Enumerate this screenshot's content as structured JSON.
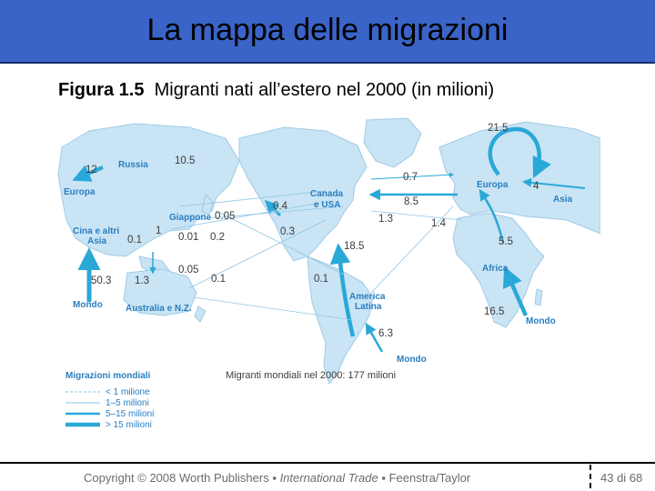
{
  "header": {
    "title": "La mappa delle migrazioni"
  },
  "figure": {
    "label": "Figura 1.5",
    "caption": "Migranti nati all’estero nel 2000 (in milioni)"
  },
  "colors": {
    "title_bg": "#3a64c8",
    "land": "#c9e4f4",
    "flow": "#2aa8d8",
    "region_label": "#2a7ec0"
  },
  "map": {
    "regions": {
      "russia": "Russia",
      "europa_left": "Europa",
      "giappone": "Giappone",
      "cina_line1": "Cina e altri",
      "cina_line2": "Asia",
      "mondo_left": "Mondo",
      "australia": "Australia e N.Z.",
      "canada_line1": "Canada",
      "canada_line2": "e USA",
      "europa_right": "Europa",
      "asia_right": "Asia",
      "africa": "Africa",
      "america_line1": "America",
      "america_line2": "Latina",
      "mondo_bottom": "Mondo",
      "mondo_right": "Mondo"
    },
    "flows": {
      "russia_to_europe": "12",
      "russia_total": "10.5",
      "giappone_in": "0.05",
      "giappone_a": "0.01",
      "giappone_b": "0.2",
      "cina_a": "0.1",
      "cina_b": "1",
      "mondo_left": "50.3",
      "australia_a": "1.3",
      "australia_b": "0.05",
      "australia_c": "0.1",
      "pacific_a": "0.4",
      "pacific_b": "0.3",
      "atlantic_top": "0.7",
      "atlantic_mid": "8.5",
      "atlantic_c": "1.3",
      "atlantic_d": "1.4",
      "europe_total": "21.5",
      "asia_to_europe": "4",
      "africa_to_europe": "5.5",
      "africa_total": "16.5",
      "latam_to_na": "18.5",
      "latam_a": "0.1",
      "latam_total": "6.3"
    },
    "world_total": "Migranti mondiali nel 2000: 177 milioni",
    "legend": {
      "title": "Migrazioni mondiali",
      "items": [
        "< 1 milione",
        "1–5 milioni",
        "5–15 milioni",
        "> 15 milioni"
      ]
    }
  },
  "footer": {
    "copyright": "Copyright © 2008 Worth Publishers ▪ ",
    "book": "International Trade",
    "author": " ▪ Feenstra/Taylor",
    "page": "43 di 68"
  }
}
